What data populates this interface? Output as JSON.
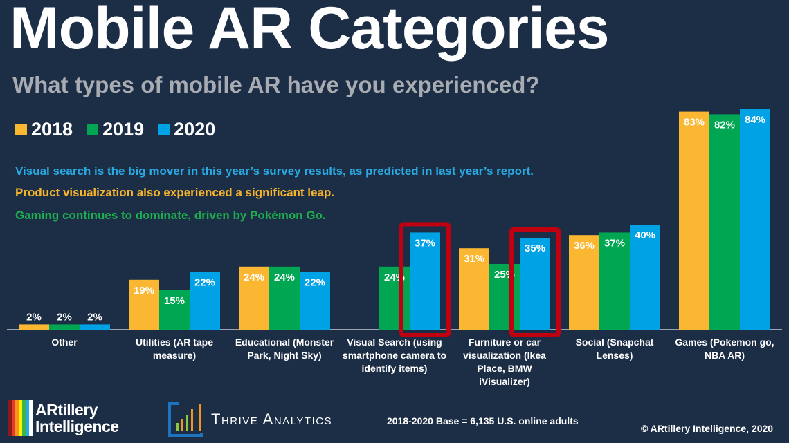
{
  "header": {
    "title": "Mobile AR Categories",
    "subtitle": "What types of mobile AR have you experienced?"
  },
  "notes": [
    {
      "text": "Visual search is the big mover in this year’s survey results, as predicted in last year’s report.",
      "color": "#29abe2"
    },
    {
      "text": "Product visualization also experienced a significant leap.",
      "color": "#f7b52c"
    },
    {
      "text": "Gaming continues to dominate, driven by Pokémon Go.",
      "color": "#1fae4f"
    }
  ],
  "chart_data": {
    "type": "bar",
    "categories": [
      [
        "Other"
      ],
      [
        "Utilities (AR tape",
        "measure)"
      ],
      [
        "Educational (Monster",
        "Park, Night Sky)"
      ],
      [
        "Visual Search (using",
        "smartphone camera to",
        "identify items)"
      ],
      [
        "Furniture or car",
        "visualization (Ikea",
        "Place, BMW",
        "iVisualizer)"
      ],
      [
        "Social (Snapchat",
        "Lenses)"
      ],
      [
        "Games (Pokemon go,",
        "NBA AR)"
      ]
    ],
    "series": [
      {
        "name": "2018",
        "color": "#fbb731",
        "values": [
          2,
          19,
          24,
          null,
          31,
          36,
          83
        ]
      },
      {
        "name": "2019",
        "color": "#00a651",
        "values": [
          2,
          15,
          24,
          24,
          25,
          37,
          82
        ]
      },
      {
        "name": "2020",
        "color": "#00a2e6",
        "values": [
          2,
          22,
          22,
          37,
          35,
          40,
          84
        ]
      }
    ],
    "value_format": "%",
    "ylim": [
      0,
      100
    ],
    "grid": false,
    "legend": "top-left",
    "highlighted": [
      {
        "category_index": 3,
        "series": "2020"
      },
      {
        "category_index": 4,
        "series": "2020"
      }
    ],
    "highlight_color": "#c00010"
  },
  "footer": {
    "logo1": [
      "ARtillery",
      "Intelligence"
    ],
    "logo2": "Thrive Analytics",
    "base_note": "2018-2020 Base = 6,135 U.S. online adults",
    "copyright": "© ARtillery Intelligence, 2020"
  }
}
